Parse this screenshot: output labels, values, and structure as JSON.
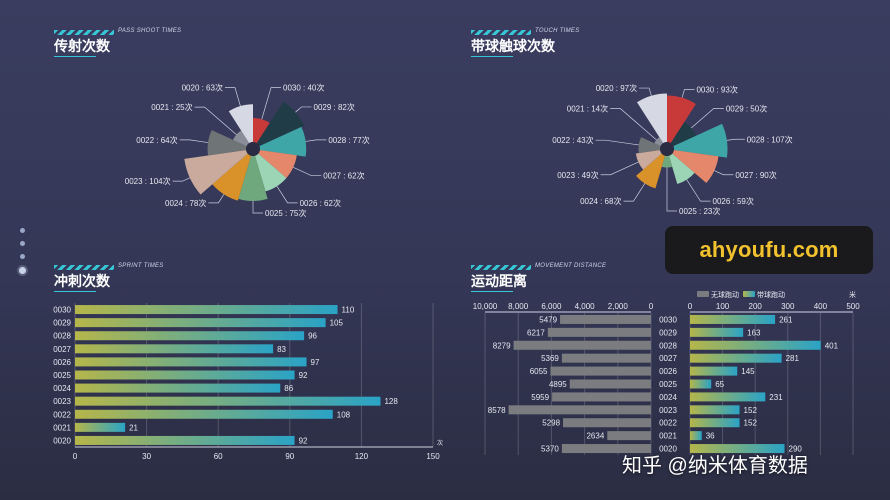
{
  "panels": {
    "shoot": {
      "title": "传射次数",
      "subtitle": "PASS SHOOT TIMES"
    },
    "touch": {
      "title": "带球触球次数",
      "subtitle": "TOUCH TIMES"
    },
    "sprint": {
      "title": "冲刺次数",
      "subtitle": "SPRINT TIMES"
    },
    "distance": {
      "title": "运动距离",
      "subtitle": "MOVEMENT DISTANCE"
    }
  },
  "watermarks": {
    "site": "ahyoufu.com",
    "zhihu": "知乎 @纳米体育数据"
  },
  "colors": {
    "players": {
      "0030": "#c8393a",
      "0029": "#1f3c47",
      "0028": "#3fa6a8",
      "0027": "#e4876a",
      "0026": "#9cd4b6",
      "0025": "#6fa87c",
      "0024": "#d9922a",
      "0023": "#c9aa9c",
      "0022": "#6f7576",
      "0021": "#8b8d99",
      "0020": "#d6d9e3"
    },
    "bar_gradient": [
      "#b5b64a",
      "#2aa3c6"
    ],
    "grey_bar": "#7b7c80",
    "accent": "#37c6d6"
  },
  "chart_data": [
    {
      "id": "shoot",
      "type": "pie",
      "variant": "rose",
      "categories": [
        "0030",
        "0029",
        "0028",
        "0027",
        "0026",
        "0025",
        "0024",
        "0023",
        "0022",
        "0021",
        "0020"
      ],
      "values": [
        40,
        82,
        77,
        62,
        62,
        75,
        78,
        104,
        64,
        25,
        63
      ],
      "labels": [
        "0030 : 40次",
        "0029 : 82次",
        "0028 : 77次",
        "0027 : 62次",
        "0026 : 62次",
        "0025 : 75次",
        "0024 : 78次",
        "0023 : 104次",
        "0022 : 64次",
        "0021 : 25次",
        "0020 : 63次"
      ]
    },
    {
      "id": "touch",
      "type": "pie",
      "variant": "rose",
      "categories": [
        "0030",
        "0029",
        "0028",
        "0027",
        "0026",
        "0025",
        "0024",
        "0023",
        "0022",
        "0021",
        "0020"
      ],
      "values": [
        93,
        50,
        107,
        90,
        59,
        23,
        68,
        49,
        43,
        14,
        97
      ],
      "labels": [
        "0030 : 93次",
        "0029 : 50次",
        "0028 : 107次",
        "0027 : 90次",
        "0026 : 59次",
        "0025 : 23次",
        "0024 : 68次",
        "0023 : 49次",
        "0022 : 43次",
        "0021 : 14次",
        "0020 : 97次"
      ]
    },
    {
      "id": "sprint",
      "type": "bar",
      "orientation": "horizontal",
      "categories": [
        "0030",
        "0029",
        "0028",
        "0027",
        "0026",
        "0025",
        "0024",
        "0023",
        "0022",
        "0021",
        "0020"
      ],
      "values": [
        110,
        105,
        96,
        83,
        97,
        92,
        86,
        128,
        108,
        21,
        92
      ],
      "xlim": [
        0,
        150
      ],
      "xticks": [
        "0",
        "30",
        "60",
        "90",
        "120",
        "150"
      ],
      "xunit": "次",
      "grid": true
    },
    {
      "id": "distance",
      "type": "bar",
      "orientation": "horizontal",
      "variant": "butterfly",
      "categories": [
        "0030",
        "0029",
        "0028",
        "0027",
        "0026",
        "0025",
        "0024",
        "0023",
        "0022",
        "0021",
        "0020"
      ],
      "legend": [
        "无球跑动",
        "带球跑动"
      ],
      "legend_position": "top",
      "series": [
        {
          "name": "无球跑动",
          "values": [
            5479,
            6217,
            8279,
            5369,
            6055,
            4895,
            5959,
            8578,
            5298,
            2634,
            5370
          ],
          "xlim": [
            0,
            10000
          ],
          "xticks": [
            "10,000",
            "8,000",
            "6,000",
            "4,000",
            "2,000",
            "0"
          ]
        },
        {
          "name": "带球跑动",
          "values": [
            261,
            163,
            401,
            281,
            145,
            65,
            231,
            152,
            152,
            36,
            290
          ],
          "xlim": [
            0,
            500
          ],
          "xticks": [
            "0",
            "100",
            "200",
            "300",
            "400",
            "500"
          ],
          "xunit": "米"
        }
      ],
      "grid": true
    }
  ]
}
